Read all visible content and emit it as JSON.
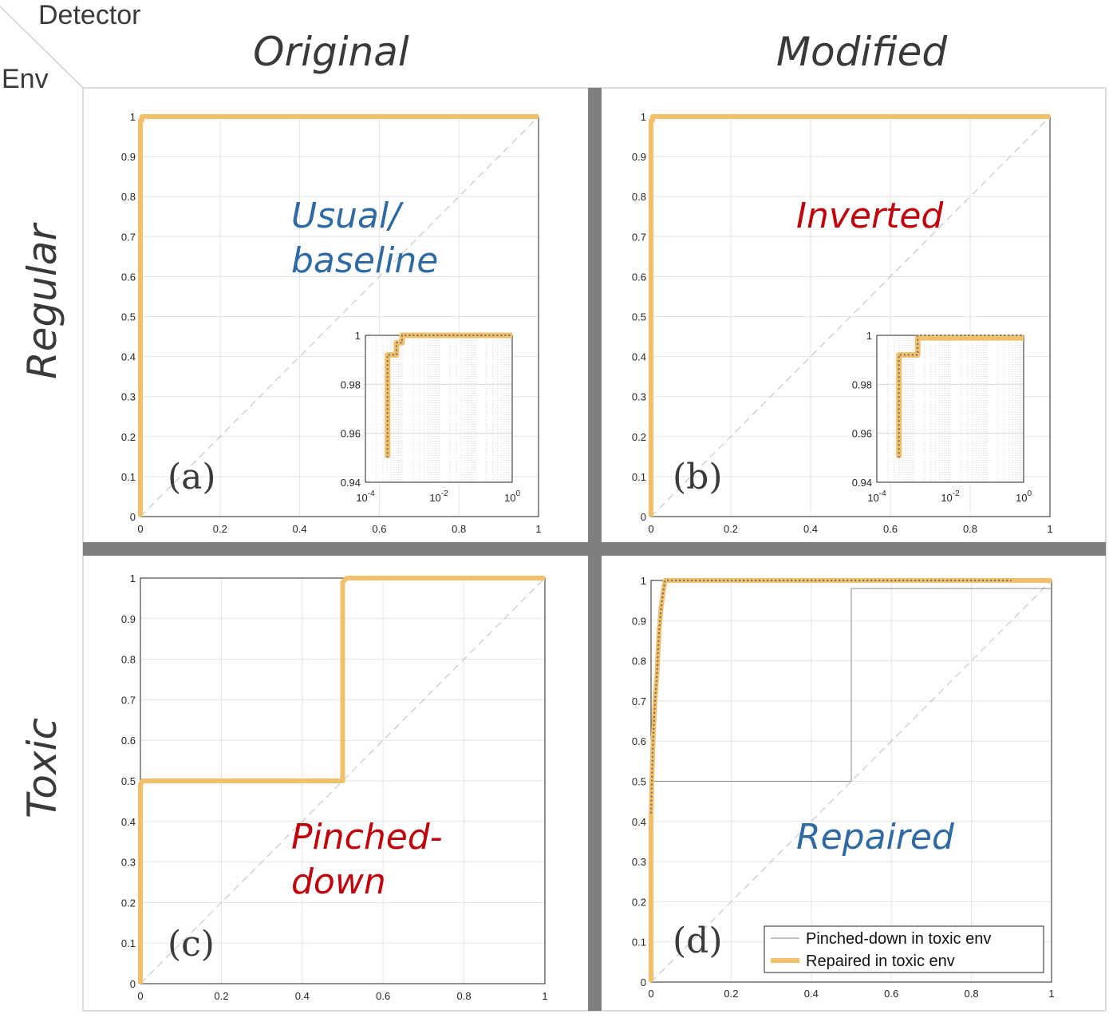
{
  "headers": {
    "corner_top": "Detector",
    "corner_left": "Env",
    "col1": "Original",
    "col2": "Modified",
    "row1": "Regular",
    "row2": "Toxic"
  },
  "colors": {
    "separator": "#7f7f7f",
    "curve_dark": "#6b6b6b",
    "curve_orange": "#f2c06b",
    "label_blue": "#2f6aa3",
    "label_red": "#c0000a",
    "grid": "#e3e3e3",
    "diagonal": "#bdbdbd"
  },
  "chart_data": [
    {
      "id": "a",
      "type": "line",
      "panel_label": "(a)",
      "annotation": [
        "Usual/",
        "baseline"
      ],
      "annotation_color": "blue",
      "xlim": [
        0,
        1
      ],
      "ylim": [
        0,
        1
      ],
      "xticks": [
        "0",
        "0.2",
        "0.4",
        "0.6",
        "0.8",
        "1"
      ],
      "yticks": [
        "0",
        "0.1",
        "0.2",
        "0.3",
        "0.4",
        "0.5",
        "0.6",
        "0.7",
        "0.8",
        "0.9",
        "1"
      ],
      "grid": true,
      "diagonal": true,
      "series": [
        {
          "style": "dark",
          "x": [
            0,
            0,
            0.004,
            0.004,
            1
          ],
          "y": [
            0,
            0.99,
            0.99,
            1,
            1
          ]
        },
        {
          "style": "orange",
          "x": [
            0,
            0,
            0.004,
            0.004,
            1
          ],
          "y": [
            0,
            0.99,
            0.99,
            1,
            1
          ]
        }
      ],
      "inset": {
        "xscale": "log",
        "xlim": [
          0.0001,
          1
        ],
        "ylim": [
          0.94,
          1
        ],
        "xticks": [
          0.0001,
          0.01,
          1
        ],
        "yticks": [
          "0.94",
          "0.96",
          "0.98",
          "1"
        ],
        "series": [
          {
            "style": "orange",
            "x": [
              0.0004,
              0.0004,
              0.0007,
              0.0007,
              0.001,
              0.001,
              1
            ],
            "y": [
              0.95,
              0.992,
              0.992,
              0.997,
              0.997,
              1,
              1
            ]
          },
          {
            "style": "dark",
            "x": [
              0.0004,
              0.0004,
              0.0007,
              0.0007,
              0.001,
              0.001,
              1
            ],
            "y": [
              0.95,
              0.992,
              0.992,
              0.997,
              0.997,
              1,
              1
            ]
          }
        ]
      }
    },
    {
      "id": "b",
      "type": "line",
      "panel_label": "(b)",
      "annotation": [
        "Inverted"
      ],
      "annotation_color": "red",
      "xlim": [
        0,
        1
      ],
      "ylim": [
        0,
        1
      ],
      "xticks": [
        "0",
        "0.2",
        "0.4",
        "0.6",
        "0.8",
        "1"
      ],
      "yticks": [
        "0",
        "0.1",
        "0.2",
        "0.3",
        "0.4",
        "0.5",
        "0.6",
        "0.7",
        "0.8",
        "0.9",
        "1"
      ],
      "grid": true,
      "diagonal": true,
      "series": [
        {
          "style": "dark",
          "x": [
            0,
            0,
            0.004,
            0.004,
            1
          ],
          "y": [
            0,
            0.99,
            0.99,
            1,
            1
          ]
        },
        {
          "style": "orange",
          "x": [
            0,
            0,
            0.004,
            0.004,
            1
          ],
          "y": [
            0,
            0.99,
            0.99,
            1,
            1
          ]
        }
      ],
      "inset": {
        "xscale": "log",
        "xlim": [
          0.0001,
          1
        ],
        "ylim": [
          0.94,
          1
        ],
        "xticks": [
          0.0001,
          0.01,
          1
        ],
        "yticks": [
          "0.94",
          "0.96",
          "0.98",
          "1"
        ],
        "series": [
          {
            "style": "orange",
            "x": [
              0.0004,
              0.0004,
              0.0013,
              0.0013,
              1
            ],
            "y": [
              0.95,
              0.992,
              0.992,
              0.999,
              0.999
            ]
          },
          {
            "style": "dark",
            "x": [
              0.0004,
              0.0004,
              0.0013,
              0.0013,
              1
            ],
            "y": [
              0.95,
              0.992,
              0.992,
              1,
              1
            ]
          }
        ]
      }
    },
    {
      "id": "c",
      "type": "line",
      "panel_label": "(c)",
      "annotation": [
        "Pinched-",
        "down"
      ],
      "annotation_color": "red",
      "xlim": [
        0,
        1
      ],
      "ylim": [
        0,
        1
      ],
      "xticks": [
        "0",
        "0.2",
        "0.4",
        "0.6",
        "0.8",
        "1"
      ],
      "yticks": [
        "0",
        "0.1",
        "0.2",
        "0.3",
        "0.4",
        "0.5",
        "0.6",
        "0.7",
        "0.8",
        "0.9",
        "1"
      ],
      "grid": true,
      "diagonal": true,
      "series": [
        {
          "style": "dark",
          "x": [
            0,
            0,
            0.005,
            0.5,
            0.5,
            0.51,
            1
          ],
          "y": [
            0,
            0.49,
            0.5,
            0.5,
            0.99,
            1,
            1
          ]
        },
        {
          "style": "orange",
          "x": [
            0,
            0,
            0.005,
            0.5,
            0.5,
            0.51,
            1
          ],
          "y": [
            0,
            0.49,
            0.5,
            0.5,
            0.99,
            1,
            1
          ]
        }
      ]
    },
    {
      "id": "d",
      "type": "line",
      "panel_label": "(d)",
      "annotation": [
        "Repaired"
      ],
      "annotation_color": "blue",
      "xlim": [
        0,
        1
      ],
      "ylim": [
        0,
        1
      ],
      "xticks": [
        "0",
        "0.2",
        "0.4",
        "0.6",
        "0.8",
        "1"
      ],
      "yticks": [
        "0",
        "0.1",
        "0.2",
        "0.3",
        "0.4",
        "0.5",
        "0.6",
        "0.7",
        "0.8",
        "0.9",
        "1"
      ],
      "grid": true,
      "diagonal": true,
      "legend": {
        "position": "bottom-right",
        "entries": [
          "Pinched-down in toxic env",
          "Repaired in toxic env"
        ]
      },
      "series": [
        {
          "style": "thin",
          "name": "Pinched-down in toxic env",
          "x": [
            0,
            0,
            0.5,
            0.5,
            1
          ],
          "y": [
            0,
            0.5,
            0.5,
            0.98,
            0.98
          ]
        },
        {
          "style": "orange",
          "name": "Repaired in toxic env",
          "x": [
            0,
            0,
            0.002,
            0.005,
            0.01,
            0.015,
            0.02,
            0.025,
            0.03,
            0.035,
            0.9,
            1
          ],
          "y": [
            0,
            0.4,
            0.5,
            0.6,
            0.7,
            0.77,
            0.87,
            0.93,
            0.97,
            1,
            1,
            1
          ]
        },
        {
          "style": "dark",
          "x": [
            0,
            0.002,
            0.005,
            0.01,
            0.015,
            0.02,
            0.025,
            0.03,
            0.035,
            0.9
          ],
          "y": [
            0.42,
            0.5,
            0.6,
            0.7,
            0.77,
            0.87,
            0.93,
            0.97,
            1,
            1
          ]
        }
      ]
    }
  ]
}
